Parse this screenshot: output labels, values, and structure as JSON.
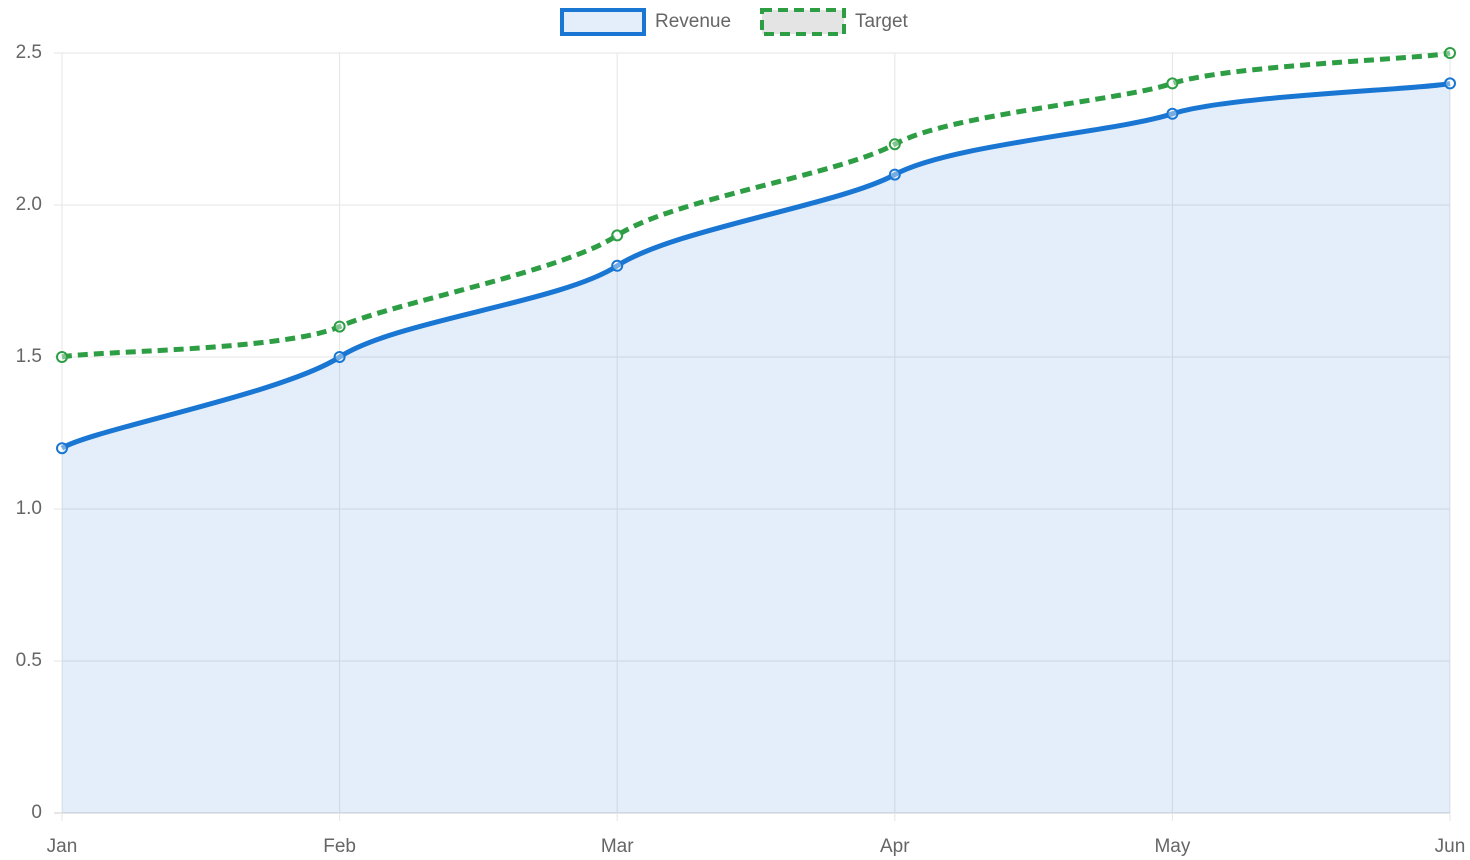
{
  "chart_data": {
    "type": "line",
    "categories": [
      "Jan",
      "Feb",
      "Mar",
      "Apr",
      "May",
      "Jun"
    ],
    "series": [
      {
        "name": "Revenue",
        "color": "#1976d2",
        "fill": true,
        "dashed": false,
        "values": [
          1.2,
          1.5,
          1.8,
          2.1,
          2.3,
          2.4
        ]
      },
      {
        "name": "Target",
        "color": "#2e9e44",
        "fill": false,
        "dashed": true,
        "values": [
          1.5,
          1.6,
          1.9,
          2.2,
          2.4,
          2.5
        ]
      }
    ],
    "ylim": [
      0,
      2.5
    ],
    "yticks": [
      0,
      0.5,
      {
        "value": 1,
        "label": "1.0"
      },
      1.5,
      {
        "value": 2,
        "label": "2.0"
      },
      2.5
    ],
    "grid": true,
    "legend": "top"
  }
}
